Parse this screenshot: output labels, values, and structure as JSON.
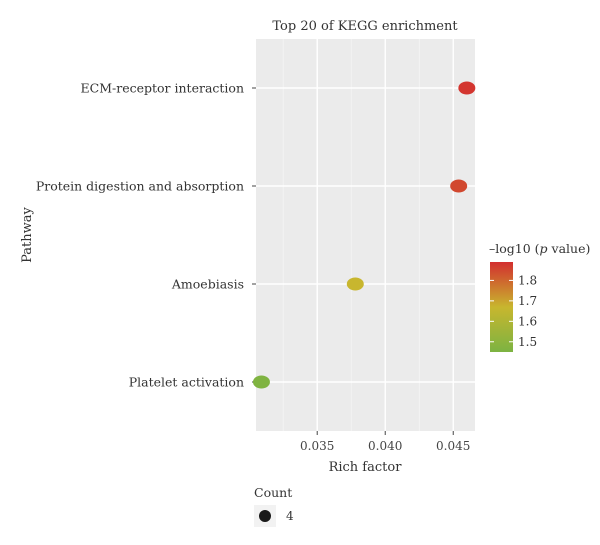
{
  "chart_data": {
    "type": "scatter",
    "title": "Top 20 of KEGG enrichment",
    "xlabel": "Rich factor",
    "ylabel": "Pathway",
    "xlim": [
      0.0305,
      0.0466
    ],
    "xticks": [
      "0.035",
      "0.040",
      "0.045"
    ],
    "xtick_values": [
      0.035,
      0.04,
      0.045
    ],
    "categories": [
      "ECM-receptor interaction",
      "Protein digestion and absorption",
      "Amoebiasis",
      "Platelet activation"
    ],
    "points": [
      {
        "pathway": "ECM-receptor interaction",
        "rich_factor": 0.046,
        "neglog10_p": 1.88,
        "count": 4
      },
      {
        "pathway": "Protein digestion and absorption",
        "rich_factor": 0.0454,
        "neglog10_p": 1.85,
        "count": 4
      },
      {
        "pathway": "Amoebiasis",
        "rich_factor": 0.0378,
        "neglog10_p": 1.67,
        "count": 4
      },
      {
        "pathway": "Platelet activation",
        "rich_factor": 0.0309,
        "neglog10_p": 1.46,
        "count": 4
      }
    ],
    "color_legend": {
      "title_prefix": "–log10 (",
      "title_italic": "p",
      "title_suffix": " value)",
      "ticks": [
        "1.8",
        "1.7",
        "1.6",
        "1.5"
      ],
      "tick_values": [
        1.8,
        1.7,
        1.6,
        1.5
      ],
      "range": [
        1.45,
        1.89
      ],
      "low_color": "#7cb342",
      "mid_color": "#c8b62e",
      "high_color": "#d32f2f"
    },
    "size_legend": {
      "title": "Count",
      "entries": [
        "4"
      ]
    },
    "grid": true,
    "panel_background": "#ebebeb"
  }
}
